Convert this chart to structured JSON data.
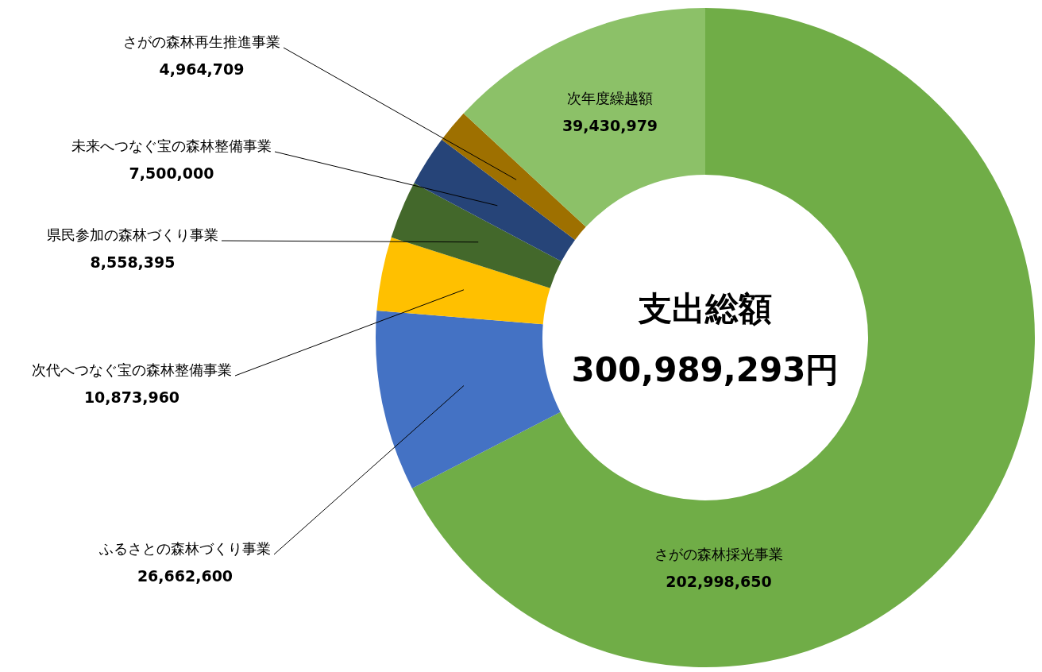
{
  "chart_data": {
    "type": "donut",
    "categories": [
      "さがの森林採光事業",
      "ふるさとの森林づくり事業",
      "次代へつなぐ宝の森林整備事業",
      "県民参加の森林づくり事業",
      "未来へつなぐ宝の森林整備事業",
      "さがの森林再生推進事業",
      "次年度繰越額"
    ],
    "values": [
      202998650,
      26662600,
      10873960,
      8558395,
      7500000,
      4964709,
      39430979
    ],
    "colors": [
      "#70ad47",
      "#4472c4",
      "#ffc000",
      "#43682b",
      "#264478",
      "#9e7000",
      "#8cc168"
    ],
    "value_labels": [
      "202,998,650",
      "26,662,600",
      "10,873,960",
      "8,558,395",
      "7,500,000",
      "4,964,709",
      "39,430,979"
    ],
    "annotations": [
      "支出総額",
      "300,989,293円"
    ]
  }
}
